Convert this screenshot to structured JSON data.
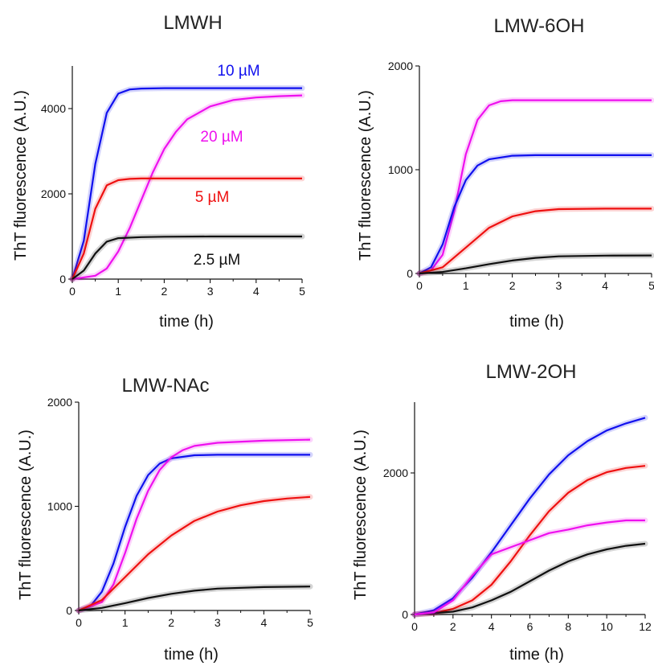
{
  "figure": {
    "colors": {
      "blue": "#1010ee",
      "magenta": "#ee10ee",
      "red": "#ee1010",
      "black": "#111111",
      "axis": "#111111"
    }
  },
  "chart_data": [
    {
      "type": "line",
      "title": "LMWH",
      "xlabel": "time (h)",
      "ylabel": "ThT fluorescence (A.U.)",
      "xlim": [
        0,
        5
      ],
      "ylim": [
        0,
        5000
      ],
      "xticks": [
        0,
        1,
        2,
        3,
        4,
        5
      ],
      "yticks": [
        0,
        2000,
        4000
      ],
      "series": [
        {
          "name": "10 µM",
          "color": "#1010ee",
          "x": [
            0,
            0.25,
            0.5,
            0.75,
            1,
            1.25,
            1.5,
            2,
            3,
            4,
            5
          ],
          "y": [
            0,
            900,
            2700,
            3900,
            4350,
            4450,
            4470,
            4480,
            4480,
            4480,
            4480
          ]
        },
        {
          "name": "20 µM",
          "color": "#ee10ee",
          "x": [
            0,
            0.5,
            0.75,
            1,
            1.25,
            1.5,
            1.75,
            2,
            2.25,
            2.5,
            3,
            3.5,
            4,
            4.5,
            5
          ],
          "y": [
            0,
            80,
            250,
            650,
            1200,
            1850,
            2500,
            3050,
            3450,
            3750,
            4050,
            4200,
            4260,
            4290,
            4310
          ]
        },
        {
          "name": "5 µM",
          "color": "#ee1010",
          "x": [
            0,
            0.25,
            0.5,
            0.75,
            1,
            1.25,
            1.5,
            2,
            3,
            4,
            5
          ],
          "y": [
            0,
            600,
            1650,
            2200,
            2320,
            2350,
            2360,
            2360,
            2360,
            2360,
            2360
          ]
        },
        {
          "name": "2.5 µM",
          "color": "#111111",
          "x": [
            0,
            0.25,
            0.5,
            0.75,
            1,
            1.5,
            2,
            3,
            4,
            5
          ],
          "y": [
            0,
            200,
            600,
            880,
            960,
            985,
            995,
            1000,
            1000,
            1000
          ]
        }
      ]
    },
    {
      "type": "line",
      "title": "LMW-6OH",
      "xlabel": "time (h)",
      "ylabel": "ThT fluorescence (A.U.)",
      "xlim": [
        0,
        5
      ],
      "ylim": [
        0,
        2000
      ],
      "xticks": [
        0,
        1,
        2,
        3,
        4,
        5
      ],
      "yticks": [
        0,
        1000,
        2000
      ],
      "series": [
        {
          "name": "magenta",
          "color": "#ee10ee",
          "x": [
            0,
            0.25,
            0.5,
            0.75,
            1,
            1.25,
            1.5,
            1.75,
            2,
            3,
            4,
            5
          ],
          "y": [
            0,
            30,
            180,
            600,
            1150,
            1480,
            1620,
            1660,
            1670,
            1670,
            1670,
            1670
          ]
        },
        {
          "name": "blue",
          "color": "#1010ee",
          "x": [
            0,
            0.25,
            0.5,
            0.75,
            1,
            1.25,
            1.5,
            2,
            2.5,
            3,
            4,
            5
          ],
          "y": [
            0,
            60,
            280,
            640,
            900,
            1040,
            1100,
            1135,
            1140,
            1140,
            1140,
            1140
          ]
        },
        {
          "name": "red",
          "color": "#ee1010",
          "x": [
            0,
            0.5,
            1,
            1.5,
            2,
            2.5,
            3,
            4,
            5
          ],
          "y": [
            0,
            60,
            250,
            440,
            550,
            600,
            620,
            625,
            625
          ]
        },
        {
          "name": "black",
          "color": "#111111",
          "x": [
            0,
            0.5,
            1,
            1.5,
            2,
            2.5,
            3,
            4,
            5
          ],
          "y": [
            0,
            15,
            50,
            90,
            125,
            150,
            165,
            172,
            174
          ]
        }
      ]
    },
    {
      "type": "line",
      "title": "LMW-NAc",
      "xlabel": "time (h)",
      "ylabel": "ThT fluorescence (A.U.)",
      "xlim": [
        0,
        5
      ],
      "ylim": [
        0,
        2000
      ],
      "xticks": [
        0,
        1,
        2,
        3,
        4,
        5
      ],
      "yticks": [
        0,
        1000,
        2000
      ],
      "series": [
        {
          "name": "blue",
          "color": "#1010ee",
          "x": [
            0,
            0.25,
            0.5,
            0.75,
            1,
            1.25,
            1.5,
            1.75,
            2,
            2.5,
            3,
            4,
            5
          ],
          "y": [
            0,
            40,
            180,
            450,
            800,
            1100,
            1300,
            1410,
            1460,
            1490,
            1495,
            1495,
            1495
          ]
        },
        {
          "name": "magenta",
          "color": "#ee10ee",
          "x": [
            0,
            0.5,
            0.75,
            1,
            1.25,
            1.5,
            1.75,
            2,
            2.25,
            2.5,
            3,
            4,
            5
          ],
          "y": [
            0,
            80,
            250,
            550,
            880,
            1150,
            1350,
            1470,
            1540,
            1580,
            1610,
            1630,
            1640
          ]
        },
        {
          "name": "red",
          "color": "#ee1010",
          "x": [
            0,
            0.5,
            1,
            1.5,
            2,
            2.5,
            3,
            3.5,
            4,
            4.5,
            5
          ],
          "y": [
            0,
            100,
            320,
            540,
            720,
            860,
            950,
            1010,
            1050,
            1075,
            1090
          ]
        },
        {
          "name": "black",
          "color": "#111111",
          "x": [
            0,
            0.5,
            1,
            1.5,
            2,
            2.5,
            3,
            4,
            5
          ],
          "y": [
            0,
            25,
            70,
            120,
            160,
            190,
            210,
            225,
            230
          ]
        }
      ]
    },
    {
      "type": "line",
      "title": "LMW-2OH",
      "xlabel": "time (h)",
      "ylabel": "ThT fluorescence (A.U.)",
      "xlim": [
        0,
        12
      ],
      "ylim": [
        0,
        3000
      ],
      "xticks": [
        0,
        2,
        4,
        6,
        8,
        10,
        12
      ],
      "yticks": [
        0,
        2000
      ],
      "series": [
        {
          "name": "blue",
          "color": "#1010ee",
          "x": [
            0,
            1,
            2,
            3,
            4,
            5,
            6,
            7,
            8,
            9,
            10,
            11,
            12
          ],
          "y": [
            0,
            60,
            230,
            520,
            880,
            1260,
            1640,
            1980,
            2250,
            2450,
            2600,
            2700,
            2780
          ]
        },
        {
          "name": "red",
          "color": "#ee1010",
          "x": [
            0,
            1,
            2,
            3,
            4,
            5,
            6,
            7,
            8,
            9,
            10,
            11,
            12
          ],
          "y": [
            0,
            20,
            80,
            200,
            420,
            750,
            1120,
            1460,
            1720,
            1900,
            2010,
            2070,
            2100
          ]
        },
        {
          "name": "black",
          "color": "#111111",
          "x": [
            0,
            2,
            3,
            4,
            5,
            6,
            7,
            8,
            9,
            10,
            11,
            12
          ],
          "y": [
            0,
            40,
            100,
            200,
            320,
            470,
            620,
            750,
            850,
            920,
            970,
            1000
          ]
        },
        {
          "name": "magenta-data",
          "color": "#ee10ee",
          "x": [
            0,
            1,
            2,
            3,
            4,
            5,
            6,
            7,
            8,
            9,
            10,
            11,
            12
          ],
          "y": [
            0,
            30,
            200,
            550,
            850,
            950,
            1050,
            1150,
            1200,
            1260,
            1300,
            1330,
            1330
          ]
        }
      ]
    }
  ]
}
